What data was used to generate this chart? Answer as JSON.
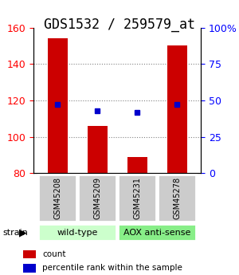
{
  "title": "GDS1532 / 259579_at",
  "samples": [
    "GSM45208",
    "GSM45209",
    "GSM45231",
    "GSM45278"
  ],
  "counts": [
    154,
    106,
    89,
    150
  ],
  "percentiles": [
    47,
    43,
    42,
    47
  ],
  "ylim_left": [
    80,
    160
  ],
  "ylim_right": [
    0,
    100
  ],
  "bar_color": "#cc0000",
  "dot_color": "#0000cc",
  "grid_ticks_left": [
    80,
    100,
    120,
    140,
    160
  ],
  "grid_ticks_right": [
    0,
    25,
    50,
    75,
    100
  ],
  "title_fontsize": 12,
  "tick_fontsize": 9,
  "label_fontsize": 8,
  "bar_width": 0.5,
  "group_spans": [
    {
      "label": "wild-type",
      "start": 0,
      "end": 1,
      "color": "#ccffcc"
    },
    {
      "label": "AOX anti-sense",
      "start": 2,
      "end": 3,
      "color": "#88ee88"
    }
  ],
  "sample_box_color": "#cccccc",
  "legend_items": [
    {
      "color": "#cc0000",
      "label": "count"
    },
    {
      "color": "#0000cc",
      "label": "percentile rank within the sample"
    }
  ]
}
